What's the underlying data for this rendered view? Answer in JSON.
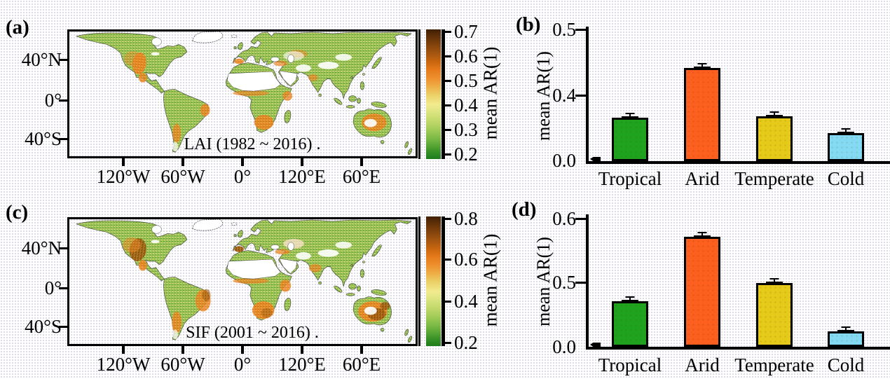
{
  "figure": {
    "description_note": "Four-panel scientific figure: global maps of mean AR(1) with colorbars (a,c) and climate-zone bar charts (b,d)."
  },
  "colors": {
    "tropical_bar": "#1fa31f",
    "arid_bar": "#fc5f1e",
    "temperate_bar": "#e5ca1a",
    "cold_bar": "#84daf2",
    "colorbar_top": "#401f03",
    "colorbar_middle": "#f2ea8e",
    "colorbar_bottom": "#1d7c1b",
    "axis": "#000000"
  },
  "chart_data": [
    {
      "id": "a",
      "panel_tag": "(a)",
      "type": "heatmap",
      "subtype": "global map",
      "title": "LAI (1982 ~ 2016) .",
      "variable": "mean AR(1)",
      "lat_tick_labels": [
        "40°N",
        "0°",
        "40°S"
      ],
      "lon_tick_labels": [
        "120°W",
        "60°W",
        "0°",
        "120°E",
        "60°E"
      ],
      "colorbar": {
        "label": "mean AR(1)",
        "tick_labels": [
          "0.7",
          "0.6",
          "0.5",
          "0.4",
          "0.3",
          "0.2"
        ],
        "range": [
          0.2,
          0.7
        ],
        "orientation": "vertical-right"
      },
      "legend_position": "right",
      "value_summary": "Green (~0.2) over most vegetated land; orange-brown (0.5-0.7) hotspots over western US, Mexico, NE Brazil, Argentina, southern Africa, Sahel margin, Spain, Near East and central-eastern Australia; deserts/ice shown white."
    },
    {
      "id": "b",
      "panel_tag": "(b)",
      "type": "bar",
      "categories": [
        "Tropical",
        "Arid",
        "Temperate",
        "Cold"
      ],
      "values": [
        0.26,
        0.44,
        0.27,
        0.17
      ],
      "errors": [
        0.004,
        0.004,
        0.006,
        0.005
      ],
      "bar_colors": [
        "#1fa31f",
        "#fc5f1e",
        "#e5ca1a",
        "#84daf2"
      ],
      "ylabel": "mean AR(1)",
      "ytick_labels": [
        "0.5",
        "0.4",
        "0.0"
      ],
      "yticks": [
        0.0,
        0.4,
        0.5
      ],
      "ylim": [
        0,
        0.5
      ],
      "grid": false
    },
    {
      "id": "c",
      "panel_tag": "(c)",
      "type": "heatmap",
      "subtype": "global map",
      "title": "SIF (2001 ~ 2016) .",
      "variable": "mean AR(1)",
      "lat_tick_labels": [
        "40°N",
        "0°",
        "40°S"
      ],
      "lon_tick_labels": [
        "120°W",
        "60°W",
        "0°",
        "120°E",
        "60°E"
      ],
      "colorbar": {
        "label": "mean AR(1)",
        "tick_labels": [
          "0.8",
          "0.6",
          "0.4",
          "0.2"
        ],
        "range": [
          0.2,
          0.8
        ],
        "orientation": "vertical-right"
      },
      "legend_position": "right",
      "value_summary": "Similar to (a) but with stronger/browner high-AR(1) areas: western US, Spain, eastern Brazil, Argentina, southern/eastern Africa and most of Australia."
    },
    {
      "id": "d",
      "panel_tag": "(d)",
      "type": "bar",
      "categories": [
        "Tropical",
        "Arid",
        "Temperate",
        "Cold"
      ],
      "values": [
        0.35,
        0.57,
        0.49,
        0.12
      ],
      "errors": [
        0.006,
        0.006,
        0.008,
        0.006
      ],
      "bar_colors": [
        "#1fa31f",
        "#fc5f1e",
        "#e5ca1a",
        "#84daf2"
      ],
      "ylabel": "mean AR(1)",
      "ytick_labels": [
        "0.6",
        "0.5",
        "0.0"
      ],
      "yticks": [
        0.0,
        0.5,
        0.6
      ],
      "ylim": [
        0,
        0.6
      ],
      "grid": false
    }
  ]
}
